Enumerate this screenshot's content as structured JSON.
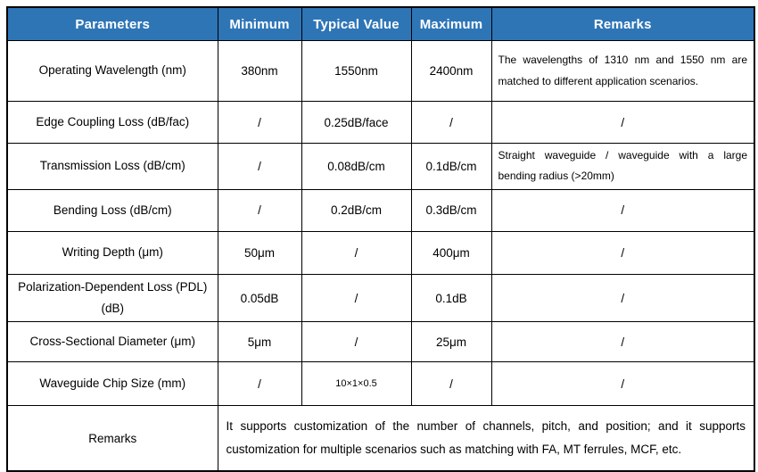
{
  "table": {
    "header": {
      "bg_color": "#2E75B6",
      "text_color": "#FFFFFF",
      "columns": [
        "Parameters",
        "Minimum",
        "Typical Value",
        "Maximum",
        "Remarks"
      ]
    },
    "rows": [
      {
        "parameter": "Operating Wavelength (nm)",
        "minimum": "380nm",
        "typical": "1550nm",
        "maximum": "2400nm",
        "remarks": "The wavelengths of 1310 nm and 1550 nm are matched to different application scenarios."
      },
      {
        "parameter": "Edge Coupling Loss (dB/fac)",
        "minimum": "/",
        "typical": "0.25dB/face",
        "maximum": "/",
        "remarks": "/"
      },
      {
        "parameter": "Transmission Loss (dB/cm)",
        "minimum": "/",
        "typical": "0.08dB/cm",
        "maximum": "0.1dB/cm",
        "remarks": "Straight waveguide / waveguide with a large bending radius (>20mm)"
      },
      {
        "parameter": "Bending Loss (dB/cm)",
        "minimum": "/",
        "typical": "0.2dB/cm",
        "maximum": "0.3dB/cm",
        "remarks": "/"
      },
      {
        "parameter": "Writing Depth (μm)",
        "minimum": "50μm",
        "typical": "/",
        "maximum": "400μm",
        "remarks": "/"
      },
      {
        "parameter": "Polarization-Dependent Loss (PDL) (dB)",
        "minimum": "0.05dB",
        "typical": "/",
        "maximum": "0.1dB",
        "remarks": "/"
      },
      {
        "parameter": "Cross-Sectional Diameter (μm)",
        "minimum": "5μm",
        "typical": "/",
        "maximum": "25μm",
        "remarks": "/"
      },
      {
        "parameter": "Waveguide Chip Size (mm)",
        "minimum": "/",
        "typical": "10×1×0.5",
        "maximum": "/",
        "remarks": "/"
      }
    ],
    "footer": {
      "label": "Remarks",
      "text": "It supports customization of the number of channels, pitch, and position; and it supports customization for multiple scenarios such as matching with FA, MT ferrules, MCF, etc."
    }
  }
}
